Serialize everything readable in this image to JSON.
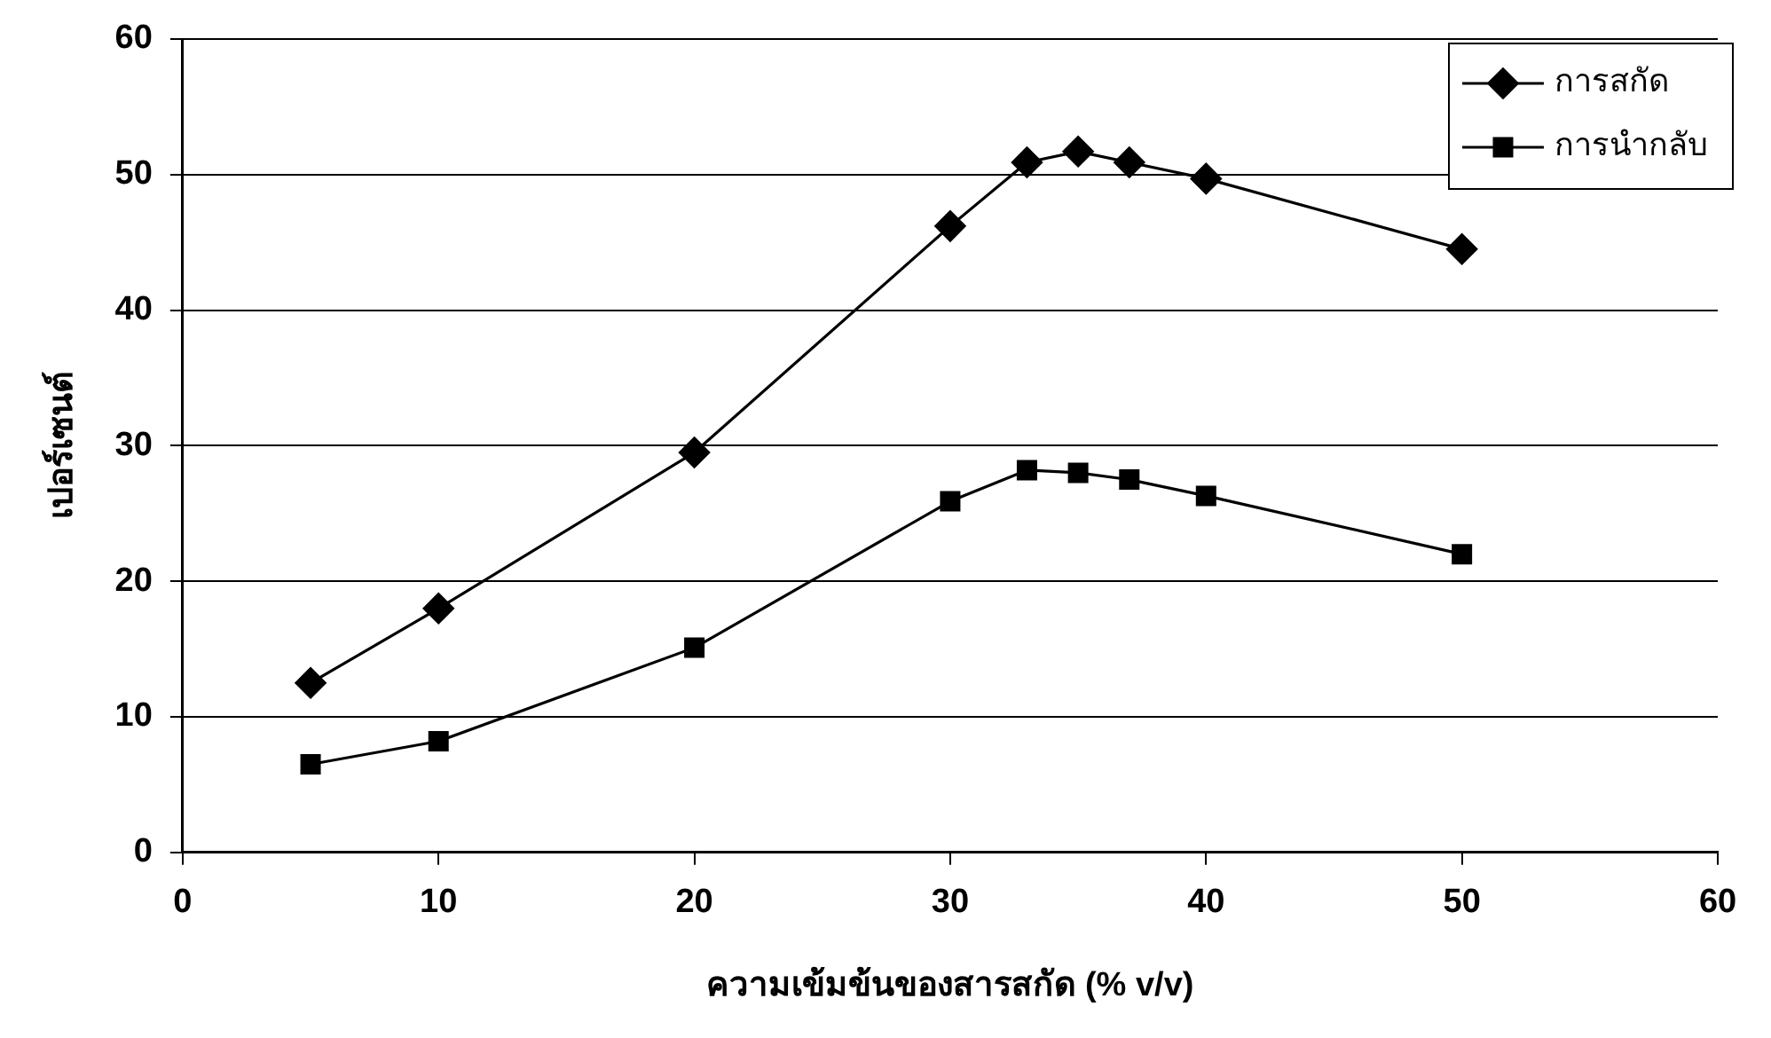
{
  "chart_data": {
    "type": "line",
    "xlabel": "ความเข้มข้นของสารสกัด (% v/v)",
    "ylabel": "เปอร์เซนต์",
    "xlim": [
      0,
      60
    ],
    "xticks": [
      0,
      10,
      20,
      30,
      40,
      50,
      60
    ],
    "ylim": [
      0,
      60
    ],
    "yticks": [
      0,
      10,
      20,
      30,
      40,
      50,
      60
    ],
    "grid": "y",
    "legend": "top right",
    "line_style": "solid",
    "series": [
      {
        "name": "การสกัด",
        "color": "#000000",
        "marker": "diamond",
        "x": [
          5,
          10,
          20,
          30,
          33,
          35,
          37,
          40,
          50
        ],
        "values": [
          12.5,
          18.0,
          29.5,
          46.2,
          50.9,
          51.7,
          50.9,
          49.7,
          44.5
        ]
      },
      {
        "name": "การนำกลับ",
        "color": "#000000",
        "marker": "square",
        "x": [
          5,
          10,
          20,
          30,
          33,
          35,
          37,
          40,
          50
        ],
        "values": [
          6.5,
          8.2,
          15.1,
          25.9,
          28.2,
          28.0,
          27.5,
          26.3,
          22.0
        ]
      }
    ]
  }
}
